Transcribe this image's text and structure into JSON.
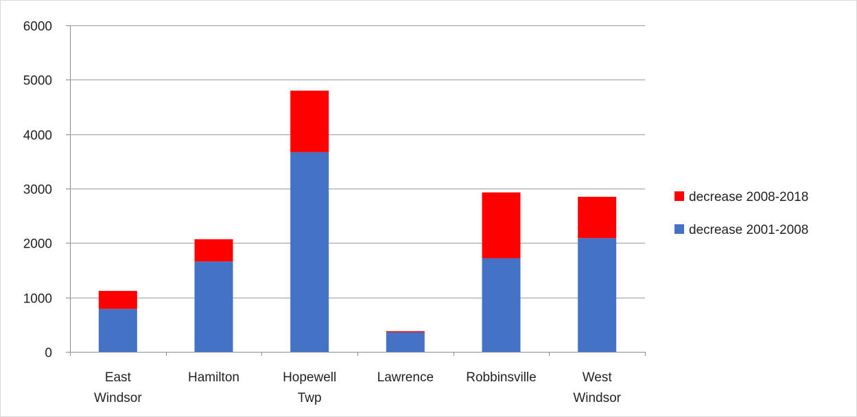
{
  "chart_data": {
    "type": "bar",
    "stacked": true,
    "categories": [
      [
        "East",
        "Windsor"
      ],
      [
        "Hamilton"
      ],
      [
        "Hopewell",
        "Twp"
      ],
      [
        "Lawrence"
      ],
      [
        "Robbinsville"
      ],
      [
        "West",
        "Windsor"
      ]
    ],
    "series": [
      {
        "name": "decrease 2001-2008",
        "color": "#4472C4",
        "values": [
          790,
          1660,
          3670,
          360,
          1720,
          2090
        ]
      },
      {
        "name": "decrease 2008-2018",
        "color": "#FF0000",
        "values": [
          330,
          410,
          1130,
          20,
          1210,
          760
        ]
      }
    ],
    "ylim": [
      0,
      6000
    ],
    "yticks": [
      0,
      1000,
      2000,
      3000,
      4000,
      5000,
      6000
    ],
    "grid": true,
    "legend_position": "right",
    "legend_order": [
      "decrease 2008-2018",
      "decrease 2001-2008"
    ],
    "title": "",
    "xlabel": "",
    "ylabel": ""
  }
}
